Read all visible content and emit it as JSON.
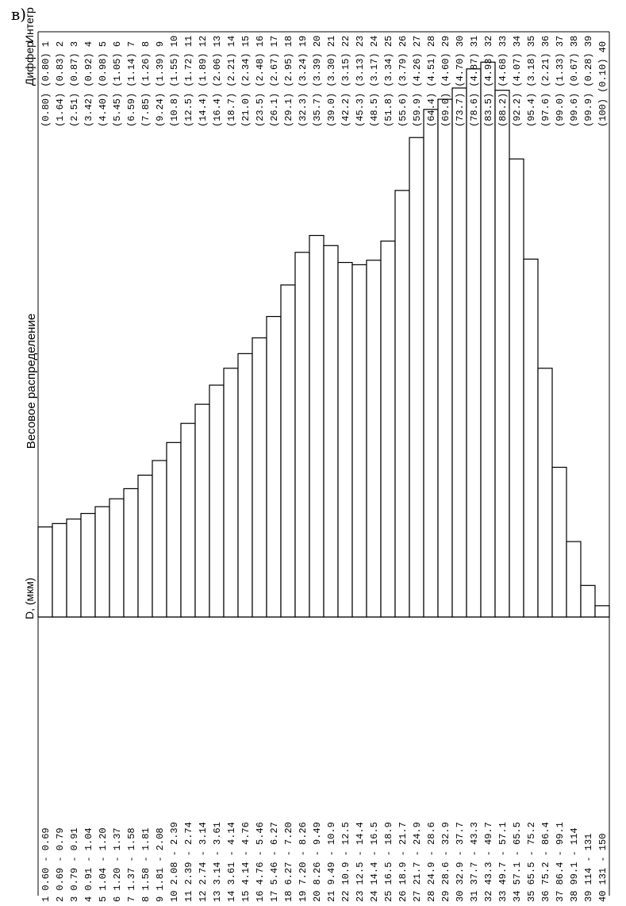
{
  "panel_label": "в)",
  "chart_data": {
    "type": "bar",
    "title": "Весовое распределение",
    "xlabel": "D, (мкм)",
    "header_diff": "Диффер",
    "header_integ": "Интегр",
    "categories": [
      "0.60 - 0.69",
      "0.69 - 0.79",
      "0.79 - 0.91",
      "0.91 - 1.04",
      "1.04 - 1.20",
      "1.20 - 1.37",
      "1.37 - 1.58",
      "1.58 - 1.81",
      "1.81 - 2.08",
      "2.08 - 2.39",
      "2.39 - 2.74",
      "2.74 - 3.14",
      "3.14 - 3.61",
      "3.61 - 4.14",
      "4.14 - 4.76",
      "4.76 - 5.46",
      "5.46 - 6.27",
      "6.27 - 7.20",
      "7.20 - 8.26",
      "8.26 - 9.49",
      "9.49 - 10.9",
      "10.9 - 12.5",
      "12.5 - 14.4",
      "14.4 - 16.5",
      "16.5 - 18.9",
      "18.9 - 21.7",
      "21.7 - 24.9",
      "24.9 - 28.6",
      "28.6 - 32.9",
      "32.9 - 37.7",
      "37.7 - 43.3",
      "43.3 - 49.7",
      "49.7 - 57.1",
      "57.1 - 65.5",
      "65.5 - 75.2",
      "75.2 - 86.4",
      "86.4 - 99.1",
      "99.1 - 114",
      "114 - 131",
      "131 - 150"
    ],
    "integral": [
      "(0.80)",
      "(1.64)",
      "(2.51)",
      "(3.42)",
      "(4.40)",
      "(5.45)",
      "(6.59)",
      "(7.85)",
      "(9.24)",
      "(10.8)",
      "(12.5)",
      "(14.4)",
      "(16.4)",
      "(18.7)",
      "(21.0)",
      "(23.5)",
      "(26.1)",
      "(29.1)",
      "(32.3)",
      "(35.7)",
      "(39.0)",
      "(42.2)",
      "(45.3)",
      "(48.5)",
      "(51.8)",
      "(55.6)",
      "(59.9)",
      "(64.4)",
      "(69.0)",
      "(73.7)",
      "(78.6)",
      "(83.5)",
      "(88.2)",
      "(92.2)",
      "(95.4)",
      "(97.6)",
      "(99.0)",
      "(99.6)",
      "(99.9)",
      "(100)"
    ],
    "differential": [
      "(0.80)",
      "(0.83)",
      "(0.87)",
      "(0.92)",
      "(0.98)",
      "(1.05)",
      "(1.14)",
      "(1.26)",
      "(1.39)",
      "(1.55)",
      "(1.72)",
      "(1.89)",
      "(2.06)",
      "(2.21)",
      "(2.34)",
      "(2.48)",
      "(2.67)",
      "(2.95)",
      "(3.24)",
      "(3.39)",
      "(3.30)",
      "(3.15)",
      "(3.13)",
      "(3.17)",
      "(3.34)",
      "(3.79)",
      "(4.26)",
      "(4.51)",
      "(4.60)",
      "(4.70)",
      "(4.87)",
      "(4.93)",
      "(4.68)",
      "(4.07)",
      "(3.18)",
      "(2.21)",
      "(1.33)",
      "(0.67)",
      "(0.28)",
      "(0.10)"
    ],
    "values": [
      0.8,
      0.83,
      0.87,
      0.92,
      0.98,
      1.05,
      1.14,
      1.26,
      1.39,
      1.55,
      1.72,
      1.89,
      2.06,
      2.21,
      2.34,
      2.48,
      2.67,
      2.95,
      3.24,
      3.39,
      3.3,
      3.15,
      3.13,
      3.17,
      3.34,
      3.79,
      4.26,
      4.51,
      4.6,
      4.7,
      4.87,
      4.93,
      4.68,
      4.07,
      3.18,
      2.21,
      1.33,
      0.67,
      0.28,
      0.1
    ],
    "ylim": [
      0,
      5.2
    ]
  }
}
